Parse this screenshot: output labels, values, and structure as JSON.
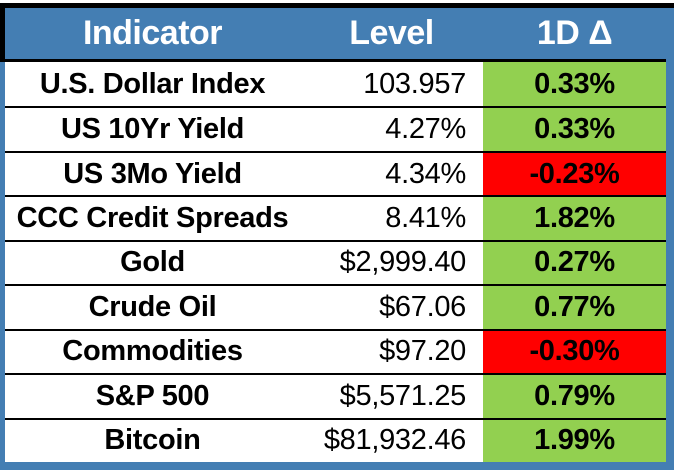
{
  "colors": {
    "header_bg": "#447EB3",
    "header_text": "#FFFFFF",
    "positive_bg": "#92D050",
    "negative_bg": "#FF0000",
    "row_bg": "#FFFFFF",
    "border": "#000000"
  },
  "chart_data": {
    "type": "table",
    "columns": [
      {
        "key": "indicator",
        "label": "Indicator"
      },
      {
        "key": "level",
        "label": "Level"
      },
      {
        "key": "delta",
        "label": "1D Δ"
      }
    ],
    "rows": [
      {
        "indicator": "U.S. Dollar Index",
        "level": "103.957",
        "delta": "0.33%",
        "direction": "up"
      },
      {
        "indicator": "US 10Yr Yield",
        "level": "4.27%",
        "delta": "0.33%",
        "direction": "up"
      },
      {
        "indicator": "US 3Mo Yield",
        "level": "4.34%",
        "delta": "-0.23%",
        "direction": "down"
      },
      {
        "indicator": "CCC Credit Spreads",
        "level": "8.41%",
        "delta": "1.82%",
        "direction": "up"
      },
      {
        "indicator": "Gold",
        "level": "$2,999.40",
        "delta": "0.27%",
        "direction": "up"
      },
      {
        "indicator": "Crude Oil",
        "level": "$67.06",
        "delta": "0.77%",
        "direction": "up"
      },
      {
        "indicator": "Commodities",
        "level": "$97.20",
        "delta": "-0.30%",
        "direction": "down"
      },
      {
        "indicator": "S&P 500",
        "level": "$5,571.25",
        "delta": "0.79%",
        "direction": "up"
      },
      {
        "indicator": "Bitcoin",
        "level": "$81,932.46",
        "delta": "1.99%",
        "direction": "up"
      }
    ]
  }
}
